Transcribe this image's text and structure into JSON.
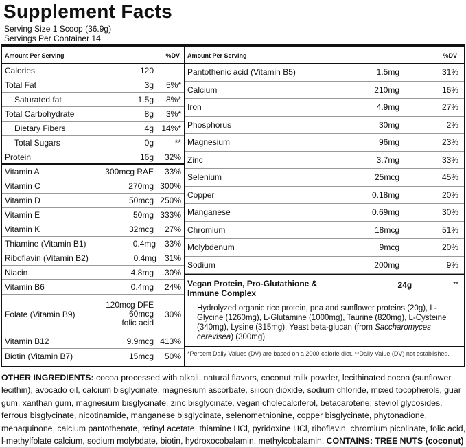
{
  "title": "Supplement Facts",
  "serving_size": "Serving Size 1 Scoop (36.9g)",
  "servings_per_container": "Servings Per Container 14",
  "left": {
    "headers": [
      "Amount Per Serving",
      "%DV"
    ],
    "rows": [
      {
        "name": "Calories",
        "amount": "120"
      },
      {
        "name": "Total Fat",
        "amount": "3g",
        "dv": "5%*"
      },
      {
        "name": "Saturated fat",
        "amount": "1.5g",
        "dv": "8%*",
        "indent": true
      },
      {
        "name": "Total Carbohydrate",
        "amount": "8g",
        "dv": "3%*"
      },
      {
        "name": "Dietary Fibers",
        "amount": "4g",
        "dv": "14%*",
        "indent": true
      },
      {
        "name": "Total Sugars",
        "amount": "0g",
        "dv": "**",
        "indent": true
      },
      {
        "name": "Protein",
        "amount": "16g",
        "dv": "32%"
      },
      {
        "name": "Vitamin A",
        "amount": "300mcg RAE",
        "dv": "33%"
      },
      {
        "name": "Vitamin C",
        "amount": "270mg",
        "dv": "300%"
      },
      {
        "name": "Vitamin D",
        "amount": "50mcg",
        "dv": "250%"
      },
      {
        "name": "Vitamin E",
        "amount": "50mg",
        "dv": "333%"
      },
      {
        "name": "Vitamin K",
        "amount": "32mcg",
        "dv": "27%"
      },
      {
        "name": "Thiamine (Vitamin B1)",
        "amount": "0.4mg",
        "dv": "33%"
      },
      {
        "name": "Riboflavin (Vitamin B2)",
        "amount": "0.4mg",
        "dv": "31%"
      },
      {
        "name": "Niacin",
        "amount": "4.8mg",
        "dv": "30%"
      },
      {
        "name": "Vitamin B6",
        "amount": "0.4mg",
        "dv": "24%"
      },
      {
        "name": "Folate (Vitamin B9)",
        "amount": [
          "120mcg DFE",
          "60mcg",
          "folic acid"
        ],
        "dv": "30%"
      },
      {
        "name": "Vitamin B12",
        "amount": "9.9mcg",
        "dv": "413%"
      },
      {
        "name": "Biotin (Vitamin B7)",
        "amount": "15mcg",
        "dv": "50%"
      }
    ]
  },
  "right": {
    "headers": [
      "Amount Per Serving",
      "%DV"
    ],
    "rows": [
      {
        "name": "Pantothenic acid (Vitamin B5)",
        "amount": "1.5mg",
        "dv": "31%"
      },
      {
        "name": "Calcium",
        "amount": "210mg",
        "dv": "16%"
      },
      {
        "name": "Iron",
        "amount": "4.9mg",
        "dv": "27%"
      },
      {
        "name": "Phosphorus",
        "amount": "30mg",
        "dv": "2%"
      },
      {
        "name": "Magnesium",
        "amount": "96mg",
        "dv": "23%"
      },
      {
        "name": "Zinc",
        "amount": "3.7mg",
        "dv": "33%"
      },
      {
        "name": "Selenium",
        "amount": "25mcg",
        "dv": "45%"
      },
      {
        "name": "Copper",
        "amount": "0.18mg",
        "dv": "20%"
      },
      {
        "name": "Manganese",
        "amount": "0.69mg",
        "dv": "30%"
      },
      {
        "name": "Chromium",
        "amount": "18mcg",
        "dv": "51%"
      },
      {
        "name": "Molybdenum",
        "amount": "9mcg",
        "dv": "20%"
      },
      {
        "name": "Sodium",
        "amount": "200mg",
        "dv": "9%"
      }
    ]
  },
  "blend": {
    "name": "Vegan Protein, Pro-Glutathione & Immune Complex",
    "amount": "24g",
    "dv": "**",
    "description": [
      "Hydrolyzed organic rice protein, pea and sunflower proteins (20g), L-Glycine (1260mg), L-Glutamine (1000mg), Taurine (820mg), L-Cysteine (340mg), Lysine (315mg), Yeast beta-glucan (from ",
      "Saccharomyces cerevisea",
      ") (300mg)"
    ]
  },
  "footnote": "*Percent Daily Values (DV) are based on a 2000 calorie diet. **Daily Value (DV) not established.",
  "other_ingredients": {
    "label": "OTHER INGREDIENTS:",
    "text": " cocoa processed with alkali, natural flavors, coconut milk powder, lecithinated cocoa (sunflower lecithin), avocado oil, calcium bisglycinate,  magnesium ascorbate, silicon dioxide, sodium chloride, mixed tocopherols, guar gum, xanthan gum, magnesium bisglycinate, zinc bisglycinate, vegan cholecalciferol, betacarotene, steviol glycosides, ferrous bisglycinate, nicotinamide, manganese bisglycinate, selenomethionine, copper bisglycinate, phytonadione, menaquinone, calcium pantothenate, retinyl acetate, thiamine HCl, pyridoxine HCl, riboflavin, chromium picolinate, folic acid, l-methylfolate calcium, sodium molybdate, biotin, hydroxocobalamin, methylcobalamin. ",
    "contains": "CONTAINS: TREE NUTS (coconut)"
  }
}
